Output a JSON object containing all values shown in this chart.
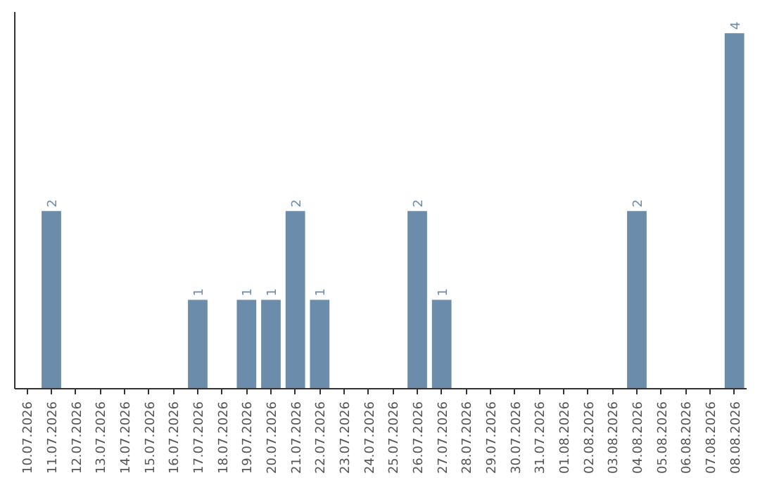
{
  "chart_data": {
    "type": "bar",
    "categories": [
      "10.07.2026",
      "11.07.2026",
      "12.07.2026",
      "13.07.2026",
      "14.07.2026",
      "15.07.2026",
      "16.07.2026",
      "17.07.2026",
      "18.07.2026",
      "19.07.2026",
      "20.07.2026",
      "21.07.2026",
      "22.07.2026",
      "23.07.2026",
      "24.07.2026",
      "25.07.2026",
      "26.07.2026",
      "27.07.2026",
      "28.07.2026",
      "29.07.2026",
      "30.07.2026",
      "31.07.2026",
      "01.08.2026",
      "02.08.2026",
      "03.08.2026",
      "04.08.2026",
      "05.08.2026",
      "06.08.2026",
      "07.08.2026",
      "08.08.2026"
    ],
    "values": [
      0,
      2,
      0,
      0,
      0,
      0,
      0,
      1,
      0,
      1,
      1,
      2,
      1,
      0,
      0,
      0,
      2,
      1,
      0,
      0,
      0,
      0,
      0,
      0,
      0,
      2,
      0,
      0,
      0,
      4
    ],
    "value_labels": [
      null,
      "2",
      null,
      null,
      null,
      null,
      null,
      "1",
      null,
      "1",
      "1",
      "2",
      "1",
      null,
      null,
      null,
      "2",
      "1",
      null,
      null,
      null,
      null,
      null,
      null,
      null,
      "2",
      null,
      null,
      null,
      "4"
    ],
    "color": "#6b8caa",
    "tick_labels": "x"
  }
}
